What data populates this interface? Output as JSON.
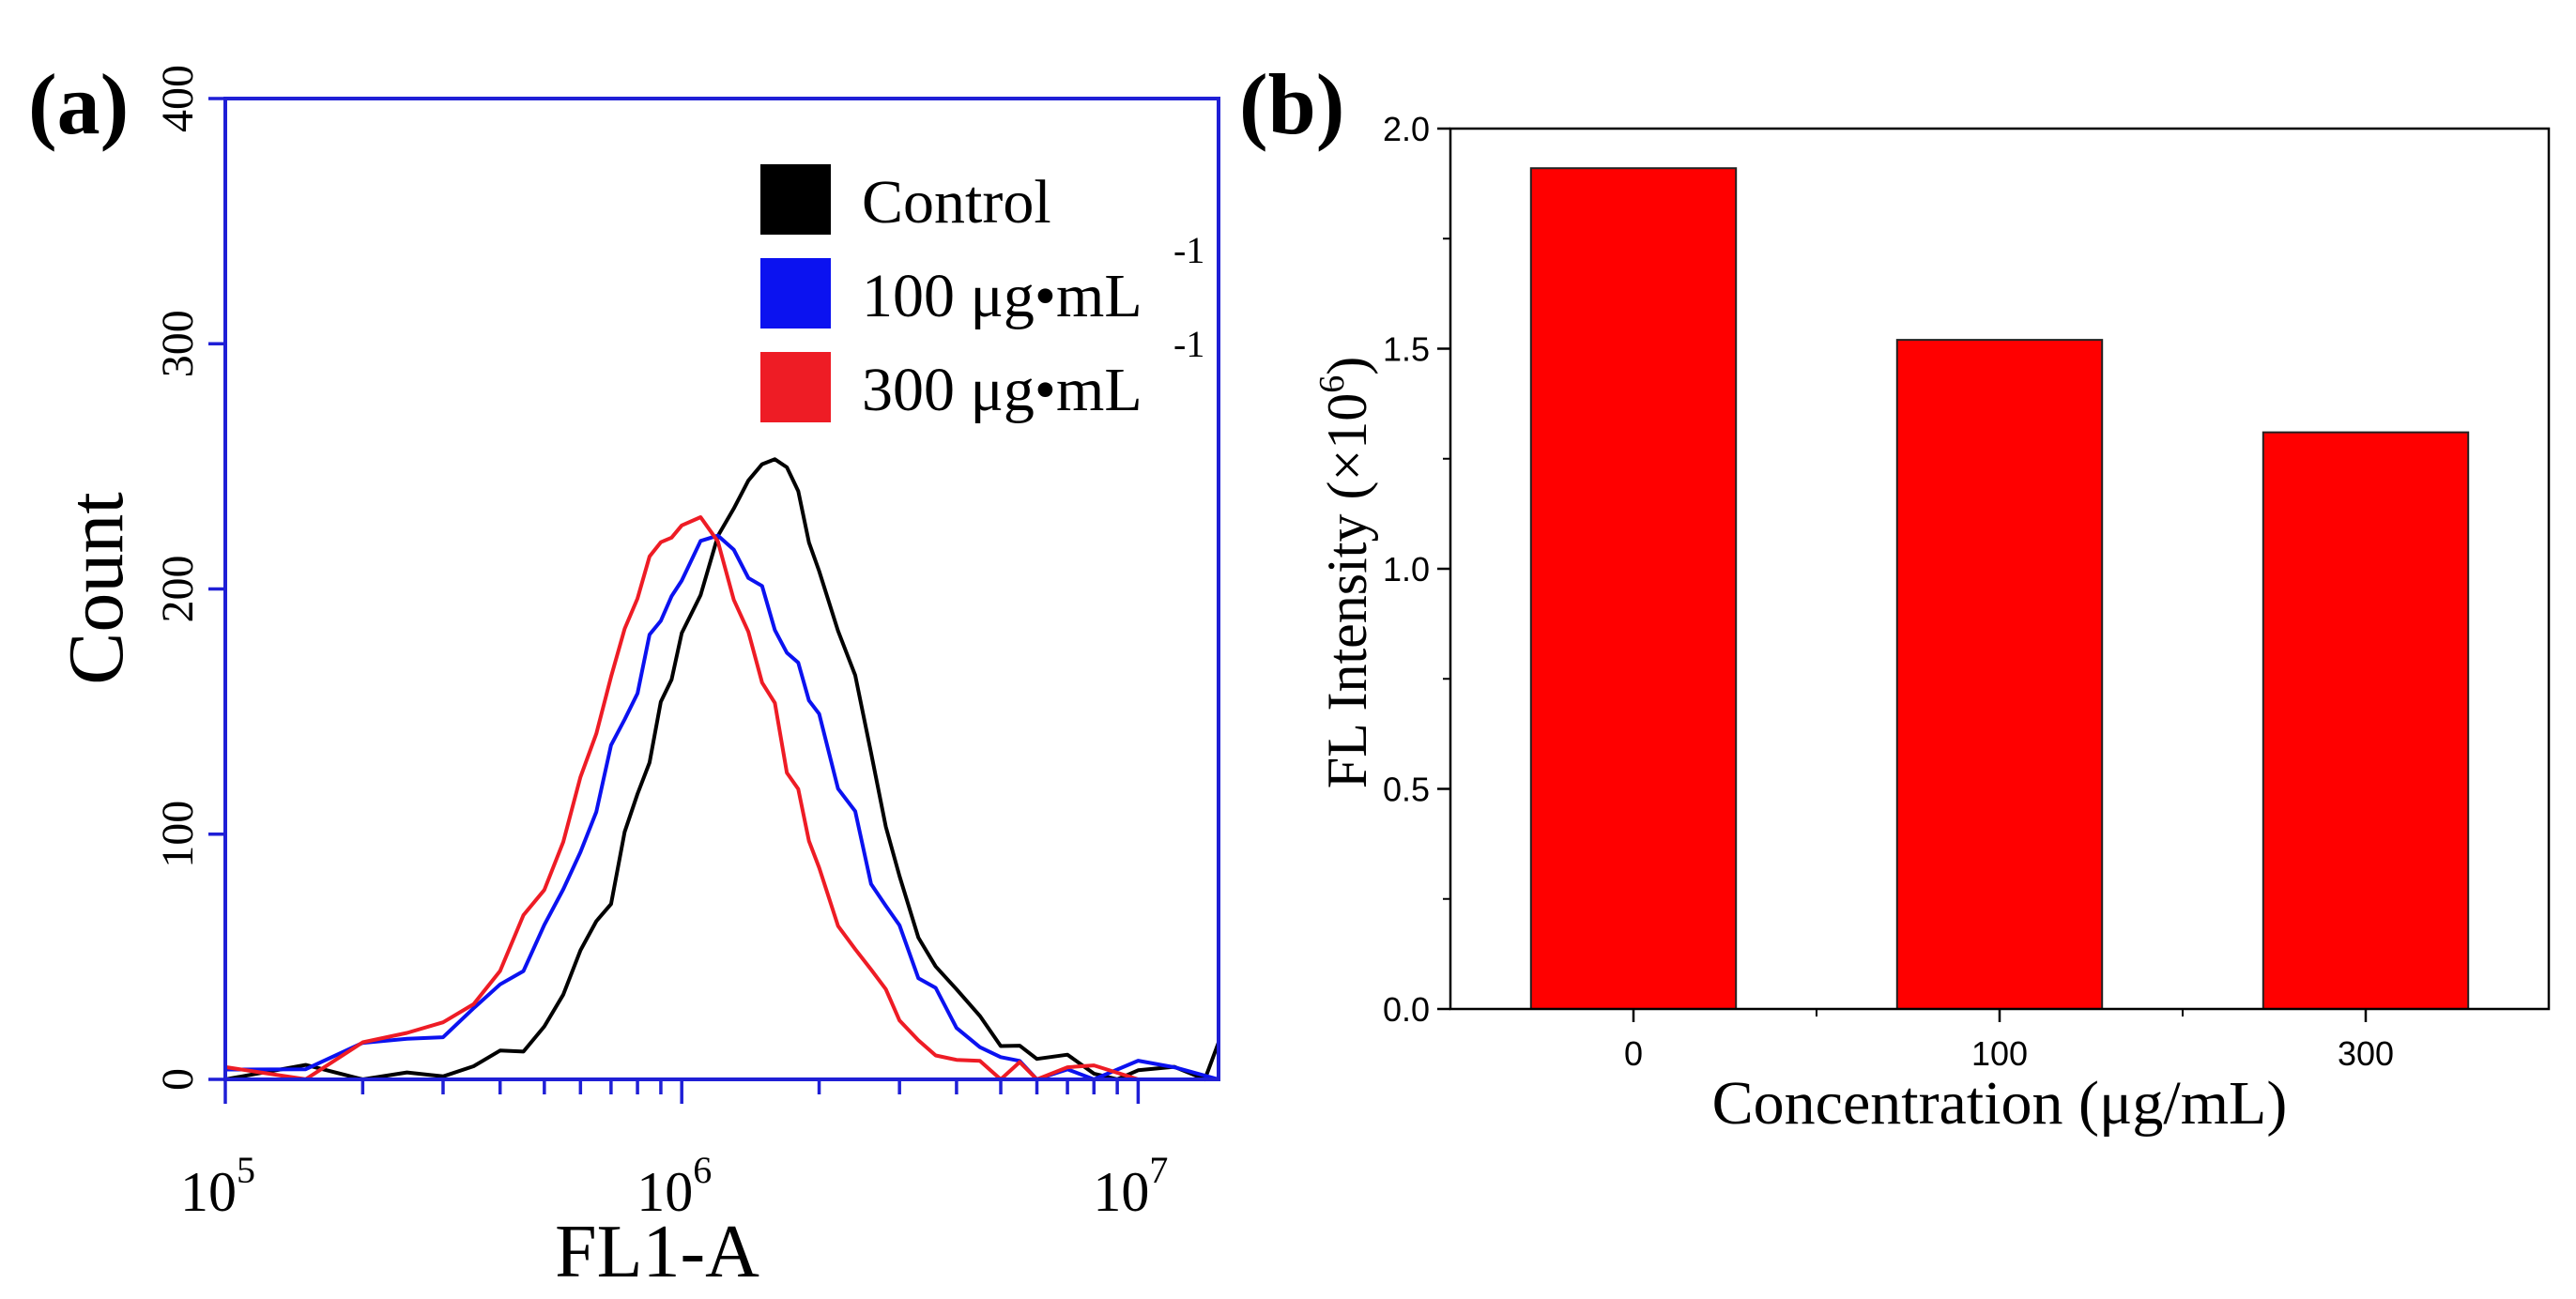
{
  "chart_data": [
    {
      "panel_label": "(a)",
      "type": "line",
      "xlabel": "FL1-A",
      "ylabel": "Count",
      "x_scale": "log",
      "xlim": [
        100000,
        15000000
      ],
      "ylim": [
        0,
        400
      ],
      "x_ticks": [
        {
          "value": 100000,
          "base": "10",
          "exp": "5"
        },
        {
          "value": 1000000,
          "base": "10",
          "exp": "6"
        },
        {
          "value": 10000000,
          "base": "10",
          "exp": "7"
        }
      ],
      "y_ticks": [
        "0",
        "100",
        "200",
        "300",
        "400"
      ],
      "legend": [
        {
          "label": "Control",
          "sup": "",
          "color": "#000000"
        },
        {
          "label": "100 μg•mL",
          "sup": "-1",
          "color": "#0b12f0"
        },
        {
          "label": "300 μg•mL",
          "sup": "-1",
          "color": "#ee1c25"
        }
      ],
      "series": [
        {
          "name": "Control",
          "color": "#000000",
          "x": [
            100000,
            150000,
            200000,
            250000,
            300000,
            350000,
            400000,
            450000,
            500000,
            550000,
            600000,
            650000,
            700000,
            750000,
            800000,
            850000,
            900000,
            950000,
            1000000,
            1100000,
            1200000,
            1300000,
            1400000,
            1500000,
            1600000,
            1700000,
            1800000,
            1900000,
            2000000,
            2200000,
            2400000,
            2600000,
            2800000,
            3000000,
            3300000,
            3600000,
            4000000,
            4500000,
            5000000,
            5500000,
            6000000,
            7000000,
            8000000,
            9000000,
            10000000,
            12000000,
            14000000,
            15000000
          ],
          "y": [
            0,
            0,
            1,
            2,
            3,
            6,
            10,
            16,
            24,
            34,
            46,
            60,
            76,
            94,
            112,
            130,
            148,
            164,
            180,
            200,
            218,
            232,
            242,
            252,
            258,
            252,
            240,
            226,
            212,
            184,
            158,
            130,
            106,
            84,
            62,
            45,
            30,
            20,
            14,
            10,
            7,
            4,
            3,
            2,
            1,
            1,
            2,
            15
          ]
        },
        {
          "name": "100 μg•mL-1",
          "color": "#0b12f0",
          "x": [
            100000,
            150000,
            200000,
            250000,
            300000,
            350000,
            400000,
            450000,
            500000,
            550000,
            600000,
            650000,
            700000,
            750000,
            800000,
            850000,
            900000,
            950000,
            1000000,
            1100000,
            1200000,
            1300000,
            1400000,
            1500000,
            1600000,
            1700000,
            1800000,
            1900000,
            2000000,
            2200000,
            2400000,
            2600000,
            2800000,
            3000000,
            3300000,
            3600000,
            4000000,
            4500000,
            5000000,
            5500000,
            6000000,
            7000000,
            8000000,
            10000000,
            12000000,
            15000000
          ],
          "y": [
            4,
            5,
            8,
            12,
            18,
            26,
            36,
            48,
            62,
            78,
            94,
            112,
            130,
            148,
            164,
            178,
            190,
            200,
            208,
            214,
            215,
            212,
            206,
            196,
            186,
            176,
            166,
            156,
            144,
            124,
            104,
            86,
            70,
            56,
            42,
            31,
            22,
            15,
            10,
            7,
            5,
            3,
            2,
            1,
            1,
            0
          ]
        },
        {
          "name": "300 μg•mL-1",
          "color": "#ee1c25",
          "x": [
            100000,
            150000,
            200000,
            250000,
            300000,
            350000,
            400000,
            450000,
            500000,
            550000,
            600000,
            650000,
            700000,
            750000,
            800000,
            850000,
            900000,
            950000,
            1000000,
            1100000,
            1200000,
            1300000,
            1400000,
            1500000,
            1600000,
            1700000,
            1800000,
            1900000,
            2000000,
            2200000,
            2400000,
            2600000,
            2800000,
            3000000,
            3300000,
            3600000,
            4000000,
            4500000,
            5000000,
            5500000,
            6000000,
            7000000,
            8000000,
            10000000,
            12000000,
            15000000
          ],
          "y": [
            5,
            6,
            10,
            16,
            24,
            34,
            46,
            60,
            78,
            98,
            120,
            142,
            164,
            182,
            198,
            210,
            220,
            226,
            228,
            224,
            214,
            200,
            184,
            166,
            148,
            130,
            114,
            100,
            88,
            68,
            52,
            40,
            30,
            22,
            15,
            10,
            7,
            5,
            3,
            2,
            2,
            1,
            1,
            0,
            0,
            0
          ]
        }
      ]
    },
    {
      "panel_label": "(b)",
      "type": "bar",
      "xlabel": "Concentration (μg/mL)",
      "ylabel": "FL Intensity (×10",
      "ylabel_sup": "6",
      "ylabel_end": ")",
      "ylim": [
        0,
        2.0
      ],
      "y_ticks": [
        "0.0",
        "0.5",
        "1.0",
        "1.5",
        "2.0"
      ],
      "categories": [
        "0",
        "100",
        "300"
      ],
      "values": [
        1.91,
        1.52,
        1.31
      ],
      "bar_color": "#ff0000"
    }
  ]
}
